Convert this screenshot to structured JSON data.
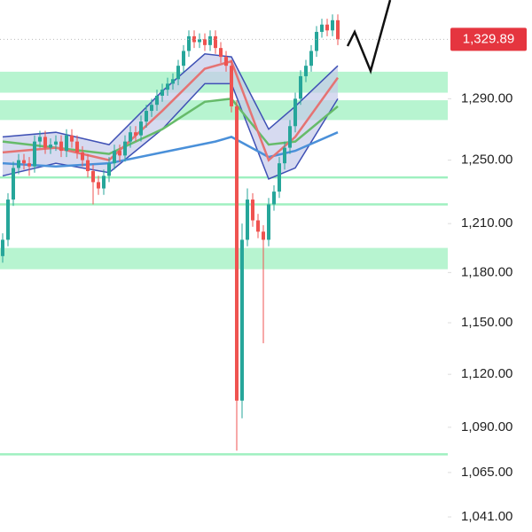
{
  "chart_data": {
    "type": "candlestick",
    "log_scale": true,
    "ylim": [
      1033,
      1357
    ],
    "yticks": [
      {
        "value": 1290,
        "label": "1,290.00"
      },
      {
        "value": 1250,
        "label": "1,250.00"
      },
      {
        "value": 1210,
        "label": "1,210.00"
      },
      {
        "value": 1180,
        "label": "1,180.00"
      },
      {
        "value": 1150,
        "label": "1,150.00"
      },
      {
        "value": 1120,
        "label": "1,120.00"
      },
      {
        "value": 1090,
        "label": "1,090.00"
      },
      {
        "value": 1065,
        "label": "1,065.00"
      },
      {
        "value": 1041,
        "label": "1,041.00"
      }
    ],
    "last_price": {
      "value": 1329.89,
      "label": "1,329.89",
      "color": "#e5353f"
    },
    "up_color": "#26a69a",
    "down_color": "#ef5350",
    "open": [
      1190,
      1200,
      1225,
      1245,
      1250,
      1248,
      1246,
      1262,
      1265,
      1258,
      1260,
      1262,
      1256,
      1266,
      1262,
      1255,
      1250,
      1243,
      1236,
      1232,
      1240,
      1248,
      1256,
      1253,
      1262,
      1268,
      1266,
      1275,
      1282,
      1286,
      1292,
      1296,
      1300,
      1303,
      1312,
      1322,
      1332,
      1328,
      1330,
      1326,
      1332,
      1324,
      1318,
      1312,
      1285,
      1105,
      1200,
      1225,
      1212,
      1205,
      1200,
      1222,
      1230,
      1248,
      1258,
      1272,
      1290,
      1305,
      1312,
      1322,
      1335,
      1340,
      1336,
      1343
    ],
    "high": [
      1204,
      1229,
      1249,
      1254,
      1254,
      1252,
      1266,
      1269,
      1269,
      1264,
      1266,
      1266,
      1270,
      1270,
      1266,
      1259,
      1254,
      1247,
      1240,
      1244,
      1252,
      1260,
      1260,
      1266,
      1272,
      1272,
      1279,
      1286,
      1290,
      1296,
      1300,
      1304,
      1307,
      1316,
      1326,
      1336,
      1336,
      1334,
      1334,
      1336,
      1336,
      1328,
      1322,
      1316,
      1289,
      1210,
      1232,
      1229,
      1216,
      1209,
      1226,
      1234,
      1252,
      1262,
      1276,
      1294,
      1309,
      1316,
      1326,
      1339,
      1344,
      1344,
      1347,
      1347
    ],
    "low": [
      1186,
      1196,
      1221,
      1241,
      1244,
      1240,
      1242,
      1258,
      1254,
      1254,
      1256,
      1252,
      1252,
      1258,
      1251,
      1246,
      1239,
      1222,
      1228,
      1228,
      1236,
      1244,
      1249,
      1249,
      1258,
      1262,
      1262,
      1271,
      1278,
      1282,
      1288,
      1292,
      1296,
      1299,
      1308,
      1318,
      1324,
      1324,
      1322,
      1322,
      1320,
      1314,
      1308,
      1281,
      1077,
      1095,
      1196,
      1208,
      1201,
      1138,
      1196,
      1218,
      1226,
      1244,
      1254,
      1268,
      1286,
      1301,
      1308,
      1318,
      1331,
      1332,
      1332,
      1326
    ],
    "close": [
      1200,
      1225,
      1245,
      1250,
      1248,
      1246,
      1262,
      1265,
      1258,
      1260,
      1262,
      1256,
      1266,
      1262,
      1255,
      1250,
      1243,
      1236,
      1232,
      1240,
      1248,
      1256,
      1253,
      1262,
      1268,
      1266,
      1275,
      1282,
      1286,
      1292,
      1296,
      1300,
      1303,
      1312,
      1322,
      1332,
      1328,
      1330,
      1326,
      1332,
      1324,
      1318,
      1312,
      1285,
      1105,
      1200,
      1225,
      1212,
      1205,
      1200,
      1222,
      1230,
      1248,
      1258,
      1272,
      1290,
      1305,
      1312,
      1322,
      1335,
      1340,
      1336,
      1343,
      1329.89
    ],
    "band": {
      "color": "#3f51b5",
      "fill": "#c5cae9",
      "x": [
        0,
        10,
        20,
        30,
        38,
        43,
        50,
        55,
        63
      ],
      "upper": [
        1265,
        1268,
        1260,
        1295,
        1320,
        1318,
        1270,
        1285,
        1312
      ],
      "lower": [
        1240,
        1248,
        1242,
        1270,
        1300,
        1300,
        1238,
        1245,
        1290
      ]
    },
    "lines": [
      {
        "color": "#4a90d9",
        "x": [
          0,
          10,
          20,
          30,
          40,
          43,
          50,
          55,
          63
        ],
        "values": [
          1248,
          1246,
          1248,
          1255,
          1262,
          1265,
          1252,
          1256,
          1268
        ]
      },
      {
        "color": "#66bb6a",
        "x": [
          0,
          10,
          20,
          30,
          38,
          43,
          50,
          55,
          63
        ],
        "values": [
          1262,
          1258,
          1254,
          1270,
          1288,
          1290,
          1260,
          1262,
          1285
        ]
      },
      {
        "color": "#e57373",
        "x": [
          0,
          10,
          20,
          30,
          38,
          43,
          50,
          55,
          63
        ],
        "values": [
          1255,
          1258,
          1250,
          1282,
          1310,
          1315,
          1250,
          1265,
          1304
        ]
      }
    ],
    "zones": [
      {
        "from": 1294,
        "to": 1308
      },
      {
        "from": 1276,
        "to": 1289
      },
      {
        "from": 1182,
        "to": 1195
      }
    ],
    "levels": [
      1239,
      1222,
      1075
    ],
    "zone_color": "#9ff0c0"
  }
}
